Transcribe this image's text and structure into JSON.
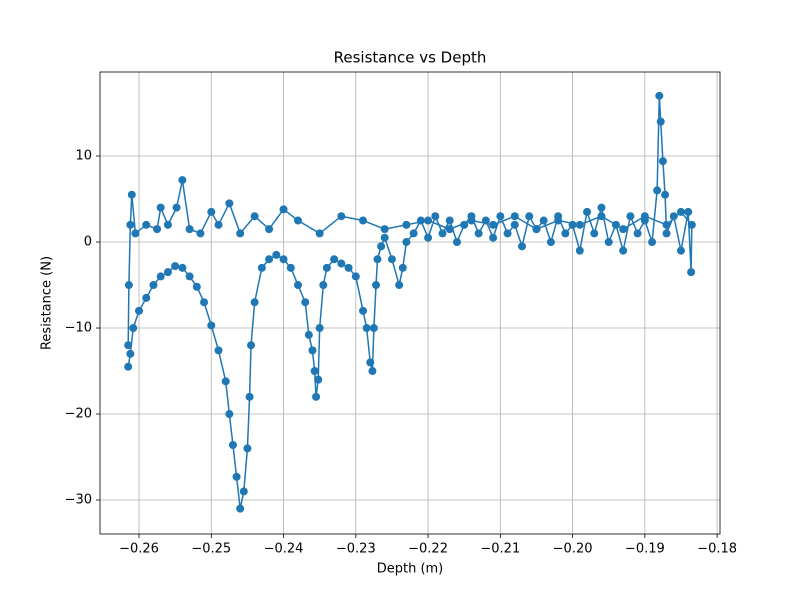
{
  "chart_data": {
    "type": "line",
    "title": "Resistance vs Depth",
    "x_label": "Depth (m)",
    "y_label": "Resistance (N)",
    "x": [
      -0.2615,
      -0.2612,
      -0.2608,
      -0.26,
      -0.259,
      -0.258,
      -0.257,
      -0.256,
      -0.255,
      -0.254,
      -0.253,
      -0.252,
      -0.251,
      -0.25,
      -0.249,
      -0.248,
      -0.2475,
      -0.247,
      -0.2465,
      -0.246,
      -0.2455,
      -0.245,
      -0.2447,
      -0.2445,
      -0.244,
      -0.243,
      -0.242,
      -0.241,
      -0.24,
      -0.239,
      -0.238,
      -0.237,
      -0.2365,
      -0.236,
      -0.2357,
      -0.2355,
      -0.2352,
      -0.235,
      -0.2345,
      -0.234,
      -0.233,
      -0.232,
      -0.231,
      -0.23,
      -0.229,
      -0.2285,
      -0.228,
      -0.2277,
      -0.2275,
      -0.2272,
      -0.227,
      -0.2265,
      -0.226,
      -0.225,
      -0.224,
      -0.2235,
      -0.223,
      -0.222,
      -0.221,
      -0.22,
      -0.219,
      -0.218,
      -0.217,
      -0.216,
      -0.215,
      -0.214,
      -0.213,
      -0.212,
      -0.211,
      -0.21,
      -0.209,
      -0.208,
      -0.207,
      -0.206,
      -0.205,
      -0.204,
      -0.203,
      -0.202,
      -0.201,
      -0.2,
      -0.199,
      -0.198,
      -0.197,
      -0.196,
      -0.195,
      -0.194,
      -0.193,
      -0.192,
      -0.191,
      -0.19,
      -0.189,
      -0.1883,
      -0.188,
      -0.1878,
      -0.1875,
      -0.1872,
      -0.187,
      -0.186,
      -0.185,
      -0.184,
      -0.1836,
      -0.1835,
      -0.185,
      -0.187,
      -0.19,
      -0.193,
      -0.196,
      -0.199,
      -0.202,
      -0.205,
      -0.208,
      -0.211,
      -0.214,
      -0.217,
      -0.22,
      -0.223,
      -0.226,
      -0.229,
      -0.232,
      -0.235,
      -0.238,
      -0.24,
      -0.242,
      -0.244,
      -0.246,
      -0.2475,
      -0.249,
      -0.25,
      -0.2515,
      -0.253,
      -0.254,
      -0.2548,
      -0.256,
      -0.257,
      -0.2575,
      -0.259,
      -0.2605,
      -0.261,
      -0.2612,
      -0.2614,
      -0.2615
    ],
    "values": [
      -14.5,
      -13,
      -10,
      -8,
      -6.5,
      -5,
      -4,
      -3.5,
      -2.8,
      -3,
      -4,
      -5.2,
      -7,
      -9.7,
      -12.6,
      -16.2,
      -20,
      -23.6,
      -27.3,
      -31,
      -29,
      -24,
      -18,
      -12,
      -7,
      -3,
      -2,
      -1.5,
      -2,
      -3,
      -5,
      -7,
      -10.8,
      -12.6,
      -15,
      -18,
      -16,
      -10,
      -5,
      -3,
      -2,
      -2.5,
      -3,
      -4,
      -8,
      -10,
      -14,
      -15,
      -10,
      -5,
      -2,
      -0.5,
      0.5,
      -2,
      -5,
      -3,
      0,
      1,
      2.5,
      0.5,
      3,
      1,
      2.5,
      0,
      2,
      3,
      1,
      2.5,
      0.5,
      3,
      1,
      2,
      -0.5,
      3,
      1.5,
      2.5,
      0,
      3,
      1,
      2,
      -1,
      3.5,
      1,
      4,
      0,
      2,
      -1,
      3,
      1,
      2.5,
      0,
      6,
      17,
      14,
      9.4,
      5.5,
      1,
      3,
      -1,
      3.5,
      -3.5,
      2,
      3.5,
      2,
      3,
      1.5,
      3,
      2,
      2.5,
      1.5,
      3,
      2,
      2.5,
      1.5,
      2.5,
      2,
      1.5,
      2.5,
      3,
      1,
      2.5,
      3.8,
      1.5,
      3,
      1,
      4.5,
      2,
      3.5,
      1,
      1.5,
      7.2,
      4,
      2,
      4,
      1.5,
      2,
      1,
      5.5,
      2,
      -5,
      -12
    ],
    "color": "#1f77b4",
    "xlim": [
      -0.2654,
      -0.1796
    ],
    "ylim": [
      -33.95,
      19.77
    ],
    "xticks": [
      {
        "value": -0.26,
        "label": "−0.26"
      },
      {
        "value": -0.25,
        "label": "−0.25"
      },
      {
        "value": -0.24,
        "label": "−0.24"
      },
      {
        "value": -0.23,
        "label": "−0.23"
      },
      {
        "value": -0.22,
        "label": "−0.22"
      },
      {
        "value": -0.21,
        "label": "−0.21"
      },
      {
        "value": -0.2,
        "label": "−0.20"
      },
      {
        "value": -0.19,
        "label": "−0.19"
      },
      {
        "value": -0.18,
        "label": "−0.18"
      }
    ],
    "yticks": [
      {
        "value": -30,
        "label": "−30"
      },
      {
        "value": -20,
        "label": "−20"
      },
      {
        "value": -10,
        "label": "−10"
      },
      0,
      10
    ],
    "grid": true
  }
}
